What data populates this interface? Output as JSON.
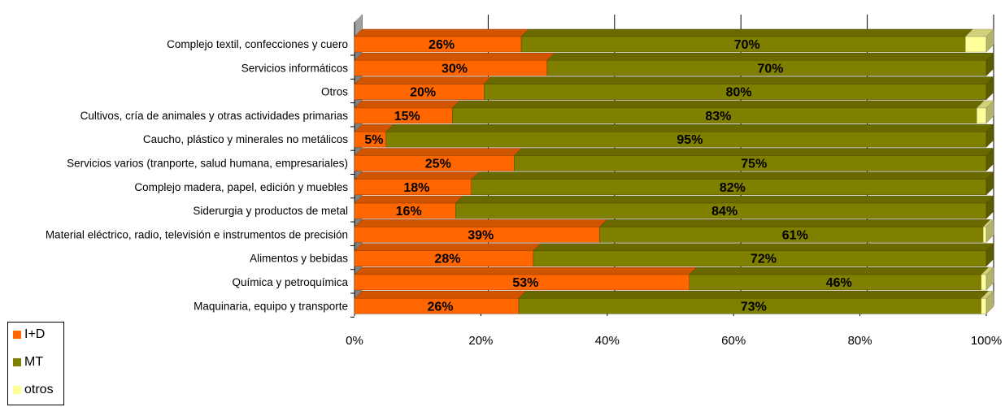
{
  "chart_data": {
    "type": "bar",
    "orientation": "horizontal",
    "stacked": "percent",
    "categories": [
      "Complejo textil, confecciones y cuero",
      "Servicios informáticos",
      "Otros",
      "Cultivos, cría de animales y otras actividades primarias",
      "Caucho, plástico y minerales no metálicos",
      "Servicios varios (tranporte, salud humana, empresariales)",
      "Complejo madera, papel, edición y muebles",
      "Siderurgia y productos de metal",
      "Material eléctrico, radio, televisión e instrumentos de precisión",
      "Alimentos y bebidas",
      "Química y petroquímica",
      "Maquinaria, equipo y transporte"
    ],
    "series": [
      {
        "name": "I+D",
        "color": "#ff6600",
        "values": [
          26.4,
          30.5,
          20.5,
          15.5,
          5.0,
          25.3,
          18.5,
          16.0,
          38.8,
          28.3,
          53.0,
          26.0
        ],
        "labels": [
          "26%",
          "30%",
          "20%",
          "15%",
          "5%",
          "25%",
          "18%",
          "16%",
          "39%",
          "28%",
          "53%",
          "26%"
        ]
      },
      {
        "name": "MT",
        "color": "#808000",
        "values": [
          70.3,
          69.5,
          79.5,
          83.0,
          95.0,
          74.7,
          81.5,
          84.0,
          60.7,
          71.7,
          46.2,
          73.2
        ],
        "labels": [
          "70%",
          "70%",
          "80%",
          "83%",
          "95%",
          "75%",
          "82%",
          "84%",
          "61%",
          "72%",
          "46%",
          "73%"
        ]
      },
      {
        "name": "otros",
        "color": "#ffff99",
        "values": [
          3.3,
          0,
          0,
          1.5,
          0,
          0,
          0,
          0,
          0.5,
          0,
          0.8,
          0.8
        ],
        "labels": [
          "",
          "",
          "",
          "",
          "",
          "",
          "",
          "",
          "",
          "",
          "",
          ""
        ]
      }
    ],
    "xlim": [
      0,
      100
    ],
    "xticks": [
      "0%",
      "20%",
      "40%",
      "60%",
      "80%",
      "100%"
    ],
    "grid": true,
    "legend_position": "bottom-left",
    "three_d": true
  }
}
